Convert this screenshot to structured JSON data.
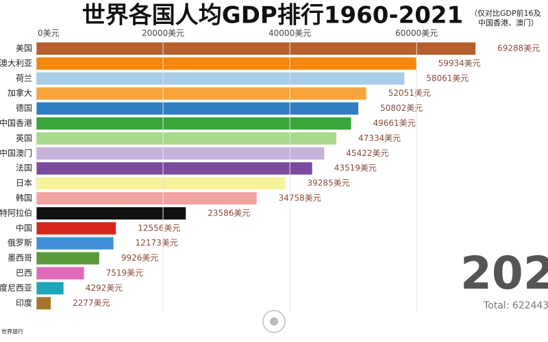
{
  "chart_data": {
    "type": "bar",
    "orientation": "horizontal",
    "title": "世界各国人均GDP排行1960-2021",
    "subtitle": [
      "（仅对比GDP前16及",
      "中国香港、澳门）"
    ],
    "categories": [
      "美国",
      "澳大利亚",
      "荷兰",
      "加拿大",
      "德国",
      "中国香港",
      "英国",
      "中国澳门",
      "法国",
      "日本",
      "韩国",
      "沙特阿拉伯",
      "中国",
      "俄罗斯",
      "墨西哥",
      "巴西",
      "印度尼西亚",
      "印度"
    ],
    "values": [
      69288,
      59934,
      58061,
      52051,
      50802,
      49661,
      47334,
      45422,
      43519,
      39285,
      34758,
      23586,
      12556,
      12173,
      9926,
      7519,
      4292,
      2277
    ],
    "value_labels": [
      "69288美元",
      "59934美元",
      "58061美元",
      "52051美元",
      "50802美元",
      "49661美元",
      "47334美元",
      "45422美元",
      "43519美元",
      "39285美元",
      "34758美元",
      "23586美元",
      "12556美元",
      "12173美元",
      "9926美元",
      "7519美元",
      "4292美元",
      "2277美元"
    ],
    "colors": [
      "#b5602e",
      "#f5870f",
      "#a9cde8",
      "#f7a43a",
      "#2e7ec1",
      "#3aa53a",
      "#a8da8c",
      "#c8b2da",
      "#7a4b9e",
      "#f6f39c",
      "#f4a3a3",
      "#111111",
      "#d8261f",
      "#3f8fd8",
      "#5a9a3a",
      "#e06ab8",
      "#1ea6b9",
      "#a8742a"
    ],
    "xlim": [
      0,
      75000
    ],
    "xticks": [
      {
        "value": 0,
        "label": "0美元"
      },
      {
        "value": 20000,
        "label": "20000美元"
      },
      {
        "value": 40000,
        "label": "40000美元"
      },
      {
        "value": 60000,
        "label": "60000美元"
      }
    ],
    "grid": true,
    "year": "202",
    "total": "Total: 622443",
    "source": "世界银行"
  }
}
